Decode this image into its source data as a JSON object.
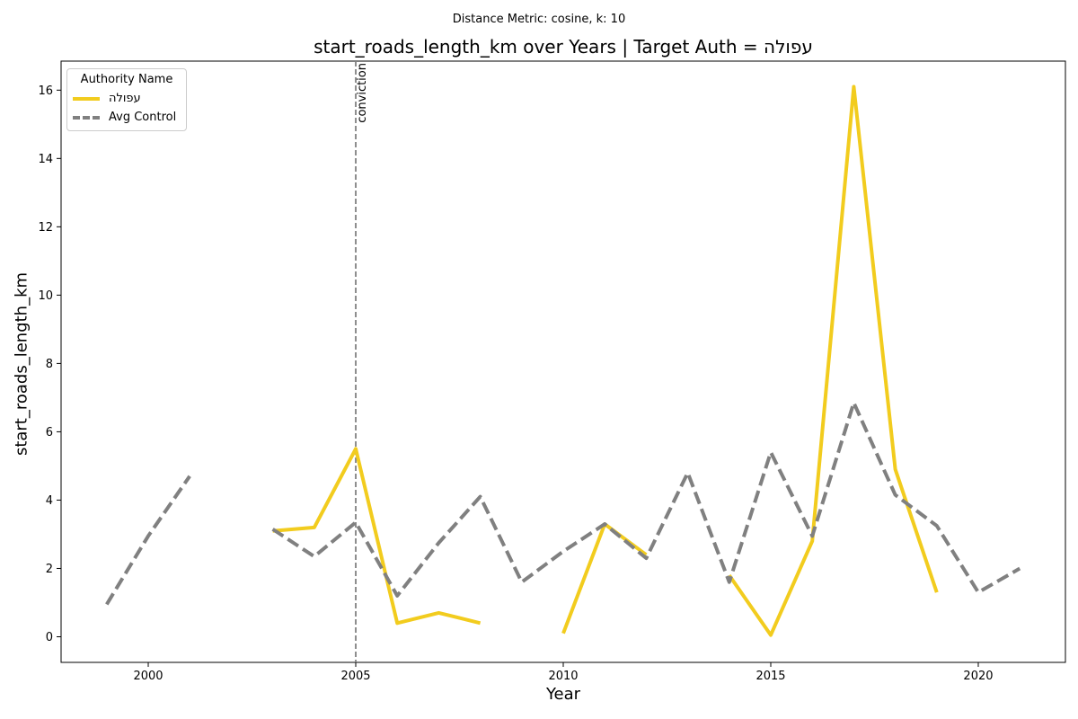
{
  "chart_data": {
    "type": "line",
    "suptitle": "Distance Metric: cosine, k: 10",
    "title": "start_roads_length_km over Years | Target Auth = עפולה",
    "xlabel": "Year",
    "ylabel": "start_roads_length_km",
    "xlim": [
      1997.9,
      2022.1
    ],
    "ylim": [
      -0.75,
      16.85
    ],
    "xticks": [
      2000,
      2005,
      2010,
      2015,
      2020
    ],
    "yticks": [
      0,
      2,
      4,
      6,
      8,
      10,
      12,
      14,
      16
    ],
    "grid": false,
    "legend": {
      "title": "Authority Name",
      "placement": "upper left"
    },
    "series": [
      {
        "name": "עפולה",
        "color": "#F2CC1E",
        "style": "solid",
        "points": [
          [
            2003,
            3.1
          ],
          [
            2004,
            3.2
          ],
          [
            2005,
            5.5
          ],
          [
            2006,
            0.4
          ],
          [
            2007,
            0.7
          ],
          [
            2008,
            0.4
          ],
          [
            2009,
            null
          ],
          [
            2010,
            0.1
          ],
          [
            2011,
            3.3
          ],
          [
            2012,
            2.4
          ],
          [
            2013,
            null
          ],
          [
            2014,
            1.8
          ],
          [
            2015,
            0.05
          ],
          [
            2016,
            2.8
          ],
          [
            2017,
            16.1
          ],
          [
            2018,
            4.9
          ],
          [
            2019,
            1.3
          ]
        ]
      },
      {
        "name": "Avg Control",
        "color": "#808080",
        "style": "dashed",
        "points": [
          [
            1999,
            0.95
          ],
          [
            2000,
            2.95
          ],
          [
            2001,
            4.7
          ],
          [
            2002,
            null
          ],
          [
            2003,
            3.15
          ],
          [
            2004,
            2.35
          ],
          [
            2005,
            3.35
          ],
          [
            2006,
            1.2
          ],
          [
            2007,
            2.75
          ],
          [
            2008,
            4.1
          ],
          [
            2009,
            1.6
          ],
          [
            2010,
            2.5
          ],
          [
            2011,
            3.3
          ],
          [
            2012,
            2.3
          ],
          [
            2013,
            4.8
          ],
          [
            2014,
            1.6
          ],
          [
            2015,
            5.4
          ],
          [
            2016,
            2.95
          ],
          [
            2017,
            6.85
          ],
          [
            2018,
            4.15
          ],
          [
            2019,
            3.25
          ],
          [
            2020,
            1.3
          ],
          [
            2021,
            2.0
          ]
        ]
      }
    ],
    "annotations": [
      {
        "type": "vline",
        "x": 2005,
        "label": "conviction",
        "color": "#808080",
        "style": "dashed"
      }
    ]
  }
}
